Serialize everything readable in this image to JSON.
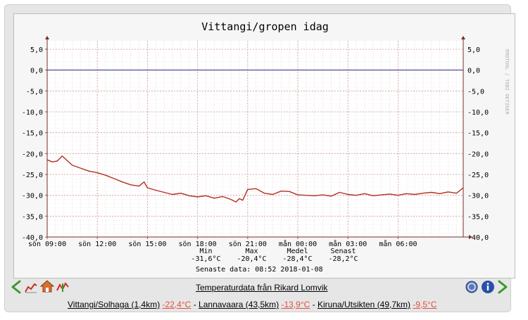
{
  "chart_data": {
    "type": "line",
    "title": "Vittangi/gropen idag",
    "ylim": [
      -40,
      5
    ],
    "y_ticks": [
      "5,0",
      "0,0",
      "-5,0",
      "-10,0",
      "-15,0",
      "-20,0",
      "-25,0",
      "-30,0",
      "-35,0",
      "-40,0"
    ],
    "x_ticks": [
      "sön 09:00",
      "sön 12:00",
      "sön 15:00",
      "sön 18:00",
      "sön 21:00",
      "mån 00:00",
      "mån 03:00",
      "mån 06:00"
    ],
    "x_hours_range": [
      9,
      33.9
    ],
    "series": [
      {
        "color": "#b03020",
        "x_hours": [
          9.0,
          9.3,
          9.6,
          9.9,
          10.2,
          10.5,
          11.0,
          11.5,
          12.0,
          12.5,
          13.0,
          13.5,
          14.0,
          14.5,
          14.8,
          15.0,
          15.5,
          16.0,
          16.5,
          17.0,
          17.5,
          18.0,
          18.5,
          19.0,
          19.5,
          20.0,
          20.3,
          20.5,
          20.7,
          21.0,
          21.5,
          22.0,
          22.5,
          23.0,
          23.5,
          24.0,
          24.5,
          25.0,
          25.5,
          26.0,
          26.5,
          27.0,
          27.5,
          28.0,
          28.5,
          29.0,
          29.5,
          30.0,
          30.5,
          31.0,
          31.5,
          32.0,
          32.5,
          33.0,
          33.5,
          33.9
        ],
        "values": [
          -21.5,
          -22.0,
          -21.8,
          -20.6,
          -21.7,
          -22.8,
          -23.5,
          -24.2,
          -24.6,
          -25.2,
          -26.0,
          -26.8,
          -27.5,
          -27.8,
          -26.8,
          -28.2,
          -28.8,
          -29.3,
          -29.8,
          -29.5,
          -30.1,
          -30.4,
          -30.1,
          -30.7,
          -30.3,
          -31.0,
          -31.6,
          -30.8,
          -31.2,
          -28.6,
          -28.4,
          -29.5,
          -29.8,
          -29.0,
          -29.1,
          -29.9,
          -30.0,
          -30.1,
          -29.9,
          -30.2,
          -29.3,
          -29.8,
          -30.0,
          -29.6,
          -30.1,
          -29.9,
          -29.7,
          -30.0,
          -29.6,
          -29.8,
          -29.5,
          -29.3,
          -29.6,
          -29.2,
          -29.5,
          -28.2
        ]
      }
    ],
    "zero_line_color": "#2a2a8a",
    "grid": true
  },
  "side_tag": "RRDTOOL / TOBI OETIKER",
  "stats": {
    "headers": [
      "Min",
      "Max",
      "Medel",
      "Senast"
    ],
    "values": [
      "-31,6°C",
      "-20,4°C",
      "-28,4°C",
      "-28,2°C"
    ],
    "last_data": "Senaste data: 08:52 2018-01-08"
  },
  "footer": {
    "title": "Temperaturdata från Rikard Lomvik",
    "stations": [
      {
        "name": "Vittangi/Solhaga (1,4km)",
        "temp": "-22,4°C"
      },
      {
        "name": "Lannavaara (43,5km)",
        "temp": "-13,9°C"
      },
      {
        "name": "Kiruna/Utsikten (49,7km)",
        "temp": "-9,5°C"
      }
    ],
    "separator": " - "
  },
  "icons": {
    "back": "arrow-left-icon",
    "graph": "line-graph-icon",
    "home": "home-icon",
    "tree": "tree-icon",
    "help": "help-icon",
    "info": "info-icon",
    "forward": "arrow-right-icon"
  },
  "colors": {
    "accent_green": "#3a9a2a",
    "temp_red": "#e05040",
    "info_blue": "#2850a8"
  }
}
